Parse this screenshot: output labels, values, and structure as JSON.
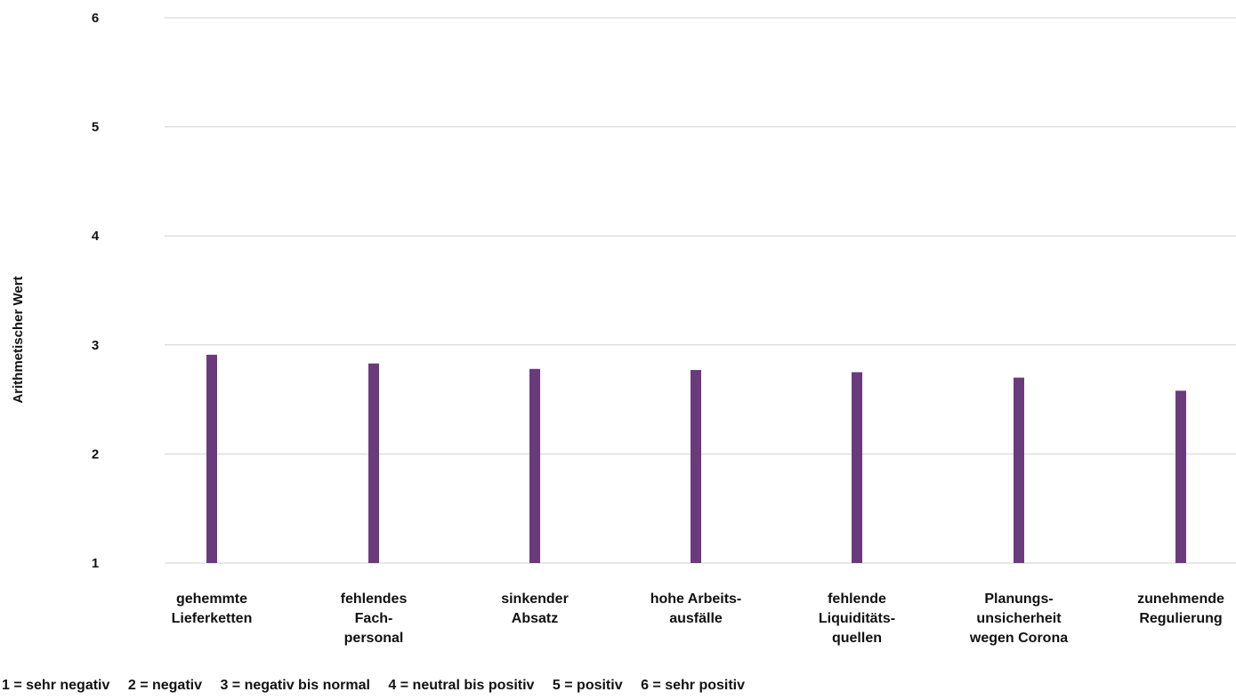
{
  "chart_data": {
    "type": "bar",
    "title": "",
    "xlabel": "",
    "ylabel": "Arithmetischer Wert",
    "ylim": [
      1,
      6
    ],
    "yticks": [
      1,
      2,
      3,
      4,
      5,
      6
    ],
    "grid": true,
    "bar_color": "#6b3a7d",
    "categories": [
      [
        "gehemmte",
        "Lieferketten"
      ],
      [
        "fehlendes",
        "Fach-",
        "personal"
      ],
      [
        "sinkender",
        "Absatz"
      ],
      [
        "hohe Arbeits-",
        "ausfälle"
      ],
      [
        "fehlende",
        "Liquiditäts-",
        "quellen"
      ],
      [
        "Planungs-",
        "unsicherheit",
        "wegen Corona"
      ],
      [
        "zunehmende",
        "Regulierung"
      ]
    ],
    "values": [
      2.91,
      2.83,
      2.78,
      2.77,
      2.75,
      2.7,
      2.58
    ]
  },
  "legend_note": [
    "1 = sehr negativ",
    "2 = negativ",
    "3 = negativ bis normal",
    "4 = neutral bis positiv",
    "5 = positiv",
    "6 = sehr positiv"
  ]
}
